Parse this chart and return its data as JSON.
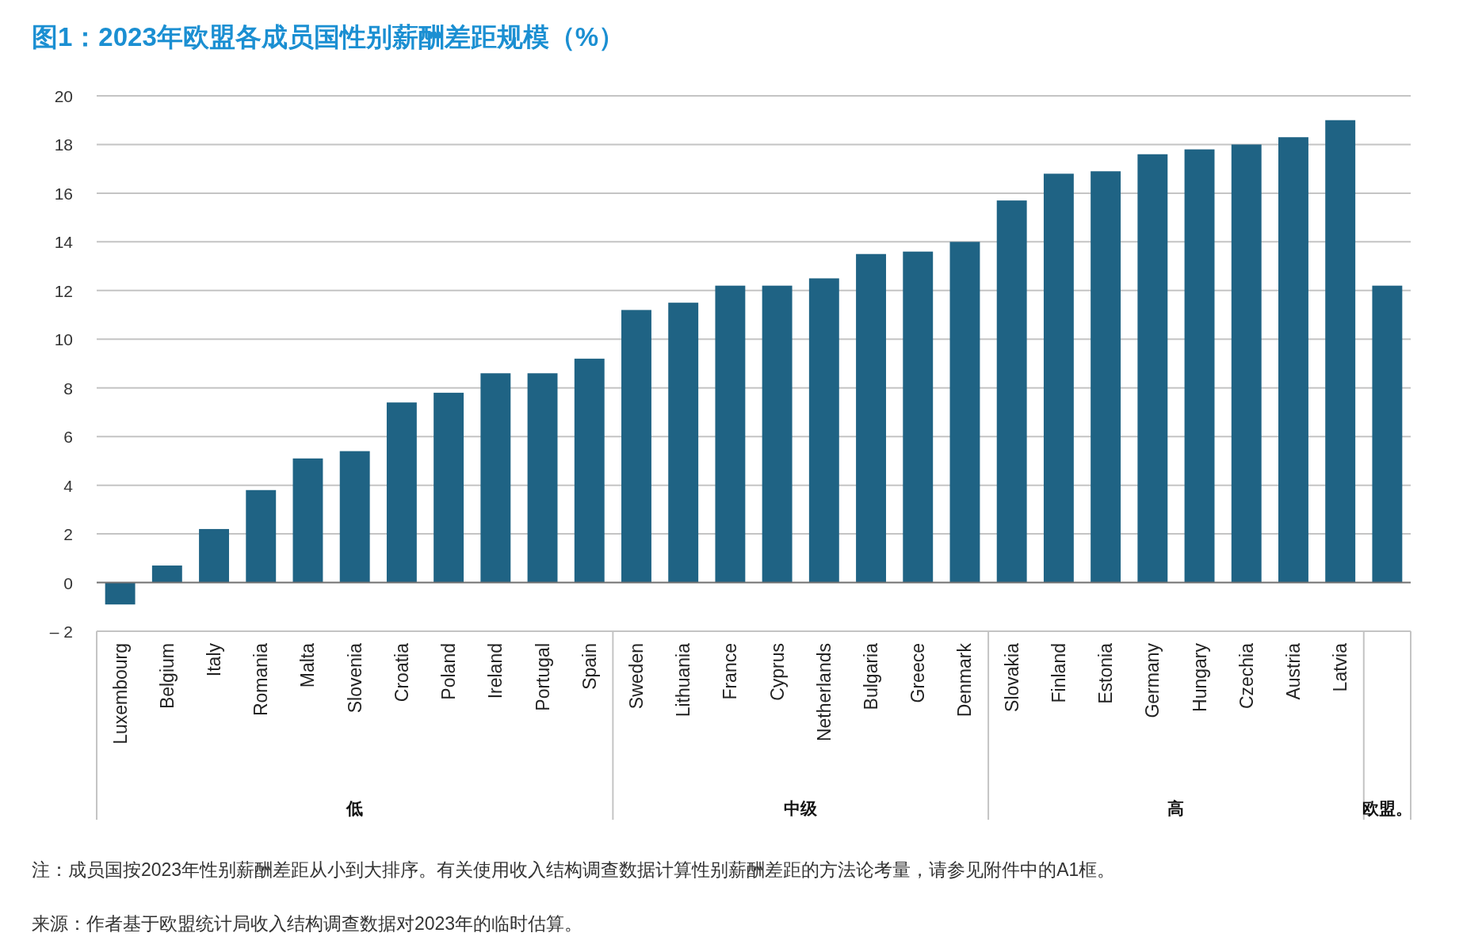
{
  "chart_data": {
    "type": "bar",
    "title": "图1：2023年欧盟各成员国性别薪酬差距规模（%）",
    "categories": [
      "Luxembourg",
      "Belgium",
      "Italy",
      "Romania",
      "Malta",
      "Slovenia",
      "Croatia",
      "Poland",
      "Ireland",
      "Portugal",
      "Spain",
      "Sweden",
      "Lithuania",
      "France",
      "Cyprus",
      "Netherlands",
      "Bulgaria",
      "Greece",
      "Denmark",
      "Slovakia",
      "Finland",
      "Estonia",
      "Germany",
      "Hungary",
      "Czechia",
      "Austria",
      "Latvia",
      null
    ],
    "values": [
      -0.9,
      0.7,
      2.2,
      3.8,
      5.1,
      5.4,
      7.4,
      7.8,
      8.6,
      8.6,
      9.2,
      11.2,
      11.5,
      12.2,
      12.2,
      12.5,
      13.5,
      13.6,
      14.0,
      15.7,
      16.8,
      16.9,
      17.6,
      17.8,
      18.0,
      18.3,
      19.0,
      12.2
    ],
    "color": "#1f6384",
    "ylim": [
      -2,
      20
    ],
    "yticks": [
      {
        "value": -2,
        "label": "– 2"
      },
      0,
      2,
      4,
      6,
      8,
      10,
      12,
      14,
      16,
      18,
      20
    ],
    "grid": "y",
    "annotations": [
      "低",
      "中级",
      "高",
      "欧盟。",
      "注：成员国按2023年性别薪酬差距从小到大排序。有关使用收入结构调查数据计算性别薪酬差距的方法论考量，请参见附件中的A1框。",
      "来源：作者基于欧盟统计局收入结构调查数据对2023年的临时估算。"
    ]
  }
}
